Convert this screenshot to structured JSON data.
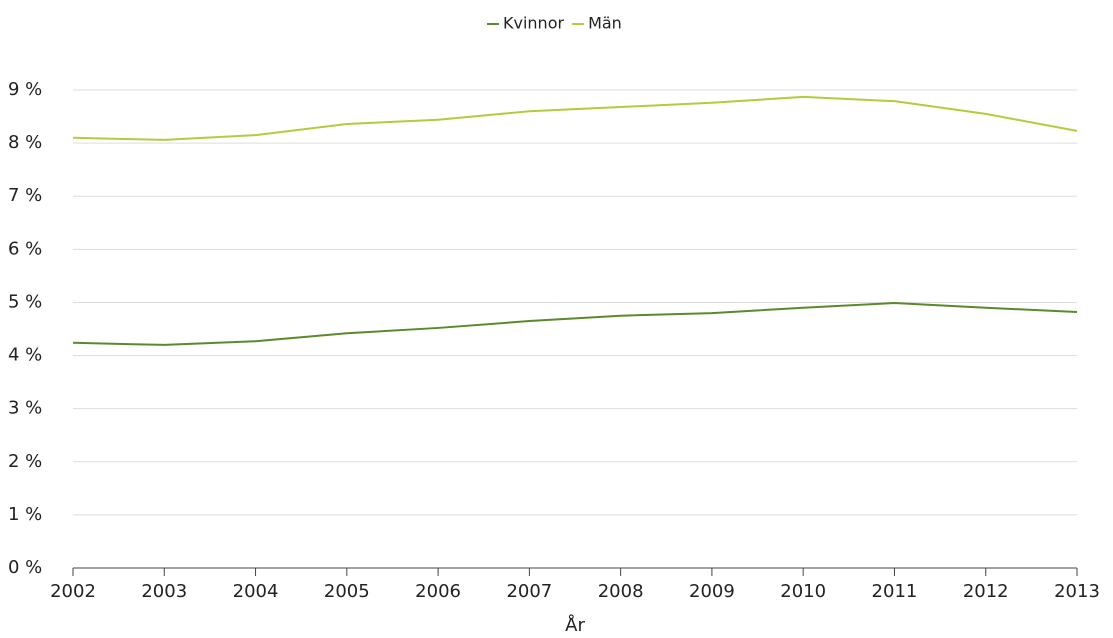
{
  "chart_data": {
    "type": "line",
    "x": [
      2002,
      2003,
      2004,
      2005,
      2006,
      2007,
      2008,
      2009,
      2010,
      2011,
      2012,
      2013
    ],
    "series": [
      {
        "name": "Kvinnor",
        "color": "#5b8a2a",
        "values": [
          4.24,
          4.2,
          4.27,
          4.42,
          4.52,
          4.65,
          4.75,
          4.8,
          4.9,
          4.99,
          4.9,
          4.82
        ]
      },
      {
        "name": "Män",
        "color": "#b2cc3c",
        "values": [
          8.1,
          8.06,
          8.15,
          8.36,
          8.44,
          8.6,
          8.68,
          8.76,
          8.87,
          8.79,
          8.55,
          8.23
        ]
      }
    ],
    "x_label": "År",
    "xlim": [
      2002,
      2013
    ],
    "xticks": [
      2002,
      2003,
      2004,
      2005,
      2006,
      2007,
      2008,
      2009,
      2010,
      2011,
      2012,
      2013
    ],
    "ylim": [
      0,
      9
    ],
    "yticks": [
      {
        "value": 0,
        "label": "0 %"
      },
      {
        "value": 1,
        "label": "1 %"
      },
      {
        "value": 2,
        "label": "2 %"
      },
      {
        "value": 3,
        "label": "3 %"
      },
      {
        "value": 4,
        "label": "4 %"
      },
      {
        "value": 5,
        "label": "5 %"
      },
      {
        "value": 6,
        "label": "6 %"
      },
      {
        "value": 7,
        "label": "7 %"
      },
      {
        "value": 8,
        "label": "8 %"
      },
      {
        "value": 9,
        "label": "9 %"
      }
    ],
    "grid": true,
    "legend": "top"
  }
}
